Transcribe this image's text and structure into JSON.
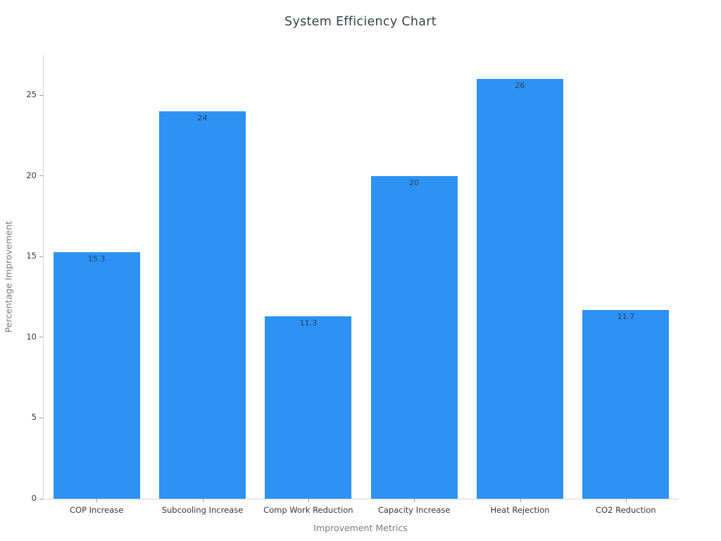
{
  "chart_data": {
    "type": "bar",
    "title": "System Efficiency Chart",
    "xlabel": "Improvement Metrics",
    "ylabel": "Percentage Improvement",
    "categories": [
      "COP Increase",
      "Subcooling Increase",
      "Comp Work Reduction",
      "Capacity Increase",
      "Heat Rejection",
      "CO2 Reduction"
    ],
    "values": [
      15.3,
      24,
      11.3,
      20,
      26,
      11.7
    ],
    "bar_labels": [
      "15.3",
      "24",
      "11.3",
      "20",
      "26",
      "11.7"
    ],
    "y_ticks": [
      0,
      5,
      10,
      15,
      20,
      25
    ],
    "ylim": [
      0,
      27.5
    ],
    "grid": false,
    "legend": "none",
    "bar_label_position": "inside-top",
    "colors": {
      "bar": "#2D92F4",
      "bar_label": "#2a3f5f",
      "title": "#3a3e45",
      "axis_title": "#7a7a7a",
      "tick_label": "#363636",
      "spine": "#d6d6d6",
      "tick_mark": "#9a9a9a",
      "background": "#ffffff"
    }
  }
}
